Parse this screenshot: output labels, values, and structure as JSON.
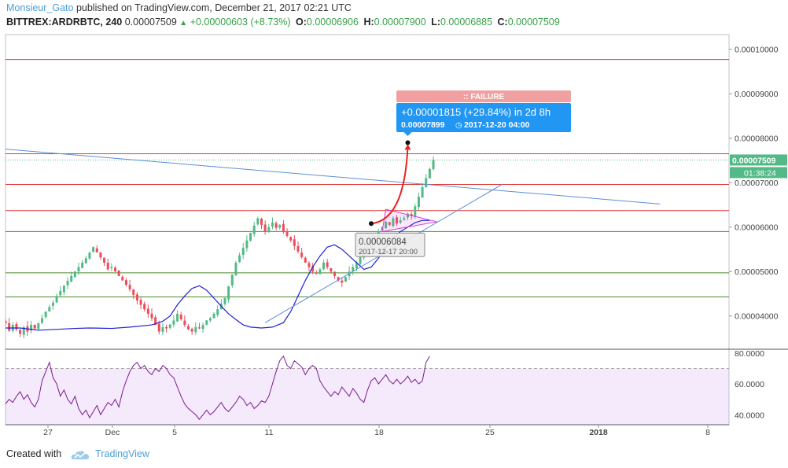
{
  "header": {
    "publisher": "Monsieur_Gato",
    "published_text": "published on TradingView.com, December 21, 2017 02:21 UTC",
    "symbol": "BITTREX:ARDRBTC, 240",
    "last": "0.00007509",
    "change": "+0.00000603 (+8.73%)",
    "o_label": "O:",
    "o_value": "0.00006906",
    "h_label": "H:",
    "h_value": "0.00007900",
    "l_label": "L:",
    "l_value": "0.00006885",
    "c_label": "C:",
    "c_value": "0.00007509"
  },
  "footer": {
    "created_with": "Created with",
    "brand": "TradingView",
    "logo_icon": "tradingview-cloud-icon"
  },
  "colors": {
    "up": "#53b987",
    "down": "#eb4d5c",
    "ma": "#1e22d6",
    "rsi": "#7b1b8f",
    "hline_red": "#e03a3a",
    "hline_green": "#4a8a2a",
    "trend": "#5b8fd8",
    "accent": "#2196f3"
  },
  "chart_data": {
    "type": "candlestick",
    "y_range": [
      3.27e-05,
      0.0001033
    ],
    "y_ticks": [
      "0.00010000",
      "0.00009000",
      "0.00008000",
      "0.00007000",
      "0.00006000",
      "0.00005000",
      "0.00004000"
    ],
    "x_ticks": [
      "27",
      "Dec",
      "5",
      "11",
      "18",
      "25",
      "2018",
      "8"
    ],
    "current_price_label": "0.00007509",
    "countdown_label": "01:38:24",
    "horizontal_levels": [
      {
        "price": 9.77e-05,
        "color": "red"
      },
      {
        "price": 7.65e-05,
        "color": "red"
      },
      {
        "price": 6.96e-05,
        "color": "red"
      },
      {
        "price": 6.37e-05,
        "color": "red"
      },
      {
        "price": 5.9e-05,
        "color": "green"
      },
      {
        "price": 4.97e-05,
        "color": "green"
      },
      {
        "price": 4.43e-05,
        "color": "green"
      }
    ],
    "candle_segments": [
      [
        3.8e-05,
        3.75e-05,
        3.78e-05,
        3.66e-05,
        3.72e-05,
        3.8e-05,
        3.78e-05,
        3.83e-05
      ],
      [
        3.9e-05,
        3.75e-05,
        3.83e-05,
        3.97e-05,
        4.2e-05,
        3.9e-05,
        3.78e-05,
        3.85e-05,
        3.92e-05
      ],
      [
        3.9e-05,
        3.83e-05,
        3.67e-05,
        3.8e-05,
        3.7e-05,
        3.6e-05,
        3.75e-05,
        3.65e-05,
        3.8e-05,
        3.72e-05
      ],
      [
        3.8e-05,
        3.95e-05,
        4.1e-05,
        4.3e-05,
        4.45e-05,
        4.68e-05,
        4.9e-05,
        5.1e-05,
        5.3e-05,
        5.55e-05,
        5.2e-05,
        5.05e-05,
        5.1e-05
      ],
      [
        5.05e-05,
        4.8e-05,
        4.6e-05,
        4.35e-05,
        4.15e-05,
        3.95e-05,
        3.8e-05,
        3.65e-05,
        3.75e-05,
        3.72e-05,
        3.9e-05
      ],
      [
        3.9e-05,
        4.05e-05,
        3.8e-05,
        3.7e-05,
        3.65e-05,
        3.75e-05,
        3.72e-05,
        3.8e-05,
        3.9e-05
      ],
      [
        3.9e-05,
        3.95e-05,
        4.15e-05,
        4.4e-05,
        5.2e-05,
        5.7e-05,
        6.2e-05,
        6.05e-05,
        5.9e-05,
        6.1e-05,
        5.98e-05,
        6.05e-05,
        5.9e-05
      ],
      [
        5.9e-05,
        5.7e-05,
        5.45e-05,
        5.2e-05,
        5e-05,
        4.95e-05,
        5.05e-05,
        5.2e-05,
        4.9e-05,
        4.8e-05,
        4.75e-05,
        5e-05
      ],
      [
        5e-05,
        5.2e-05,
        5.45e-05,
        5.65e-05,
        5.8e-05,
        5.9e-05,
        6e-05,
        6.12e-05,
        6.05e-05,
        6.2e-05,
        6.08e-05,
        6.15e-05,
        6.2e-05,
        6.3e-05,
        6.25e-05,
        6.9e-05,
        7.51e-05
      ]
    ],
    "ma_line": [
      [
        0,
        3.73e-05
      ],
      [
        4,
        3.73e-05
      ],
      [
        9,
        3.68e-05
      ],
      [
        14,
        3.7e-05
      ],
      [
        19,
        3.72e-05
      ],
      [
        23,
        3.73e-05
      ],
      [
        29,
        3.72e-05
      ],
      [
        34,
        3.75e-05
      ],
      [
        40,
        3.8e-05
      ],
      [
        43,
        3.88e-05
      ],
      [
        45,
        4e-05
      ],
      [
        47,
        4.25e-05
      ],
      [
        49,
        4.45e-05
      ],
      [
        51,
        4.62e-05
      ],
      [
        53,
        4.68e-05
      ],
      [
        55,
        4.58e-05
      ],
      [
        57,
        4.4e-05
      ],
      [
        59,
        4.22e-05
      ],
      [
        61,
        4.05e-05
      ],
      [
        63,
        3.92e-05
      ],
      [
        65,
        3.8e-05
      ],
      [
        67,
        3.75e-05
      ],
      [
        70,
        3.73e-05
      ],
      [
        73,
        3.75e-05
      ],
      [
        76,
        3.85e-05
      ],
      [
        78,
        4.1e-05
      ],
      [
        80,
        4.45e-05
      ],
      [
        82,
        4.8e-05
      ],
      [
        84,
        5.1e-05
      ],
      [
        86,
        5.35e-05
      ],
      [
        88,
        5.55e-05
      ],
      [
        90,
        5.6e-05
      ],
      [
        92,
        5.5e-05
      ],
      [
        94,
        5.35e-05
      ],
      [
        96,
        5.2e-05
      ],
      [
        98,
        5.05e-05
      ],
      [
        100,
        5.1e-05
      ],
      [
        102,
        5.3e-05
      ],
      [
        104,
        5.55e-05
      ],
      [
        106,
        5.75e-05
      ],
      [
        108,
        5.9e-05
      ],
      [
        110,
        6e-05
      ],
      [
        112,
        6.1e-05
      ],
      [
        114,
        6.15e-05
      ],
      [
        116,
        6.15e-05
      ]
    ],
    "trend_lines": [
      {
        "from": [
          -1,
          7.76e-05
        ],
        "to": [
          179,
          6.52e-05
        ]
      },
      {
        "from": [
          71,
          3.85e-05
        ],
        "to": [
          136,
          6.97e-05
        ]
      }
    ],
    "triangle_pattern": [
      [
        104,
        6.4e-05
      ],
      [
        118,
        6.12e-05
      ],
      [
        103,
        5.9e-05
      ]
    ],
    "projection": {
      "from": [
        100,
        6.08e-05
      ],
      "to": [
        110,
        7.9e-05
      ],
      "start_label": "0.00006084",
      "start_date": "2017-12-17 20:00",
      "change_text": "+0.00001815 (+29.84%) in 2d 8h",
      "target_text": "0.00007899",
      "target_date": "2017-12-20  04:00",
      "status": ":: FAILURE"
    },
    "rsi": {
      "y_range": [
        33.5,
        82
      ],
      "y_ticks": [
        "80.0000",
        "60.0000",
        "40.0000"
      ],
      "upper_band": 70,
      "lower_band": 30,
      "points": [
        [
          0,
          47
        ],
        [
          1,
          50
        ],
        [
          2,
          48
        ],
        [
          3,
          52
        ],
        [
          4,
          55
        ],
        [
          5,
          50
        ],
        [
          6,
          53
        ],
        [
          7,
          48
        ],
        [
          8,
          45
        ],
        [
          9,
          50
        ],
        [
          10,
          62
        ],
        [
          11,
          68
        ],
        [
          12,
          74
        ],
        [
          13,
          64
        ],
        [
          14,
          60
        ],
        [
          15,
          52
        ],
        [
          16,
          56
        ],
        [
          17,
          50
        ],
        [
          18,
          47
        ],
        [
          19,
          52
        ],
        [
          20,
          44
        ],
        [
          21,
          40
        ],
        [
          22,
          43
        ],
        [
          23,
          38
        ],
        [
          24,
          42
        ],
        [
          25,
          46
        ],
        [
          26,
          40
        ],
        [
          27,
          44
        ],
        [
          28,
          48
        ],
        [
          29,
          46
        ],
        [
          30,
          50
        ],
        [
          31,
          45
        ],
        [
          32,
          55
        ],
        [
          33,
          62
        ],
        [
          34,
          68
        ],
        [
          35,
          72
        ],
        [
          36,
          74
        ],
        [
          37,
          70
        ],
        [
          38,
          72
        ],
        [
          39,
          68
        ],
        [
          40,
          66
        ],
        [
          41,
          70
        ],
        [
          42,
          68
        ],
        [
          43,
          72
        ],
        [
          44,
          70
        ],
        [
          45,
          66
        ],
        [
          46,
          64
        ],
        [
          47,
          58
        ],
        [
          48,
          52
        ],
        [
          49,
          47
        ],
        [
          50,
          44
        ],
        [
          51,
          42
        ],
        [
          52,
          40
        ],
        [
          53,
          37
        ],
        [
          54,
          40
        ],
        [
          55,
          43
        ],
        [
          56,
          40
        ],
        [
          57,
          42
        ],
        [
          58,
          45
        ],
        [
          59,
          48
        ],
        [
          60,
          44
        ],
        [
          61,
          42
        ],
        [
          62,
          45
        ],
        [
          63,
          48
        ],
        [
          64,
          52
        ],
        [
          65,
          50
        ],
        [
          66,
          46
        ],
        [
          67,
          48
        ],
        [
          68,
          44
        ],
        [
          69,
          46
        ],
        [
          70,
          49
        ],
        [
          71,
          48
        ],
        [
          72,
          52
        ],
        [
          73,
          60
        ],
        [
          74,
          68
        ],
        [
          75,
          75
        ],
        [
          76,
          78
        ],
        [
          77,
          72
        ],
        [
          78,
          70
        ],
        [
          79,
          75
        ],
        [
          80,
          73
        ],
        [
          81,
          71
        ],
        [
          82,
          66
        ],
        [
          83,
          70
        ],
        [
          84,
          72
        ],
        [
          85,
          70
        ],
        [
          86,
          62
        ],
        [
          87,
          58
        ],
        [
          88,
          55
        ],
        [
          89,
          52
        ],
        [
          90,
          55
        ],
        [
          91,
          53
        ],
        [
          92,
          58
        ],
        [
          93,
          55
        ],
        [
          94,
          52
        ],
        [
          95,
          57
        ],
        [
          96,
          54
        ],
        [
          97,
          50
        ],
        [
          98,
          48
        ],
        [
          99,
          56
        ],
        [
          100,
          62
        ],
        [
          101,
          64
        ],
        [
          102,
          60
        ],
        [
          103,
          63
        ],
        [
          104,
          66
        ],
        [
          105,
          62
        ],
        [
          106,
          60
        ],
        [
          107,
          63
        ],
        [
          108,
          60
        ],
        [
          109,
          62
        ],
        [
          110,
          65
        ],
        [
          111,
          61
        ],
        [
          112,
          63
        ],
        [
          113,
          60
        ],
        [
          114,
          62
        ],
        [
          115,
          74
        ],
        [
          116,
          78
        ]
      ]
    }
  }
}
